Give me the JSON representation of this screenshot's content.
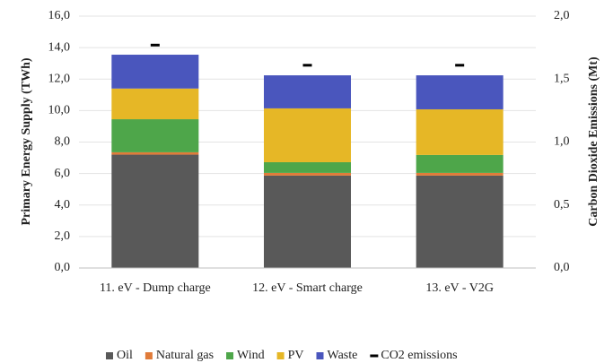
{
  "chart_data": {
    "type": "bar",
    "stacked": true,
    "categories": [
      "11. eV - Dump charge",
      "12. eV - Smart charge",
      "13. eV - V2G"
    ],
    "y_label": "Primary Energy Supply (TWh)",
    "y2_label": "Carbon Dioxide Emissions (Mt)",
    "series": [
      {
        "name": "Oil",
        "color": "#595959",
        "values": [
          7.2,
          5.87,
          5.87
        ]
      },
      {
        "name": "Natural gas",
        "color": "#e07b39",
        "values": [
          0.15,
          0.17,
          0.17
        ]
      },
      {
        "name": "Wind",
        "color": "#4ea64a",
        "values": [
          2.1,
          0.68,
          1.14
        ]
      },
      {
        "name": "PV",
        "color": "#e6b726",
        "values": [
          1.95,
          3.42,
          2.9
        ]
      },
      {
        "name": "Waste",
        "color": "#4a56bd",
        "values": [
          2.15,
          2.1,
          2.16
        ]
      },
      {
        "name": "CO2 emissions",
        "color": "#000000",
        "axis": "y2",
        "marker": "dash",
        "values": [
          1.77,
          1.61,
          1.61
        ]
      }
    ],
    "ylim": [
      0,
      16
    ],
    "yticks": [
      {
        "value": 0,
        "label": "0,0"
      },
      {
        "value": 2,
        "label": "2,0"
      },
      {
        "value": 4,
        "label": "4,0"
      },
      {
        "value": 6,
        "label": "6,0"
      },
      {
        "value": 8,
        "label": "8,0"
      },
      {
        "value": 10,
        "label": "10,0"
      },
      {
        "value": 12,
        "label": "12,0"
      },
      {
        "value": 14,
        "label": "14,0"
      },
      {
        "value": 16,
        "label": "16,0"
      }
    ],
    "y2lim": [
      0,
      2
    ],
    "y2ticks": [
      {
        "value": 0,
        "label": "0,0"
      },
      {
        "value": 0.5,
        "label": "0,5"
      },
      {
        "value": 1,
        "label": "1,0"
      },
      {
        "value": 1.5,
        "label": "1,5"
      },
      {
        "value": 2,
        "label": "2,0"
      }
    ],
    "grid": true,
    "legend": "bottom"
  }
}
